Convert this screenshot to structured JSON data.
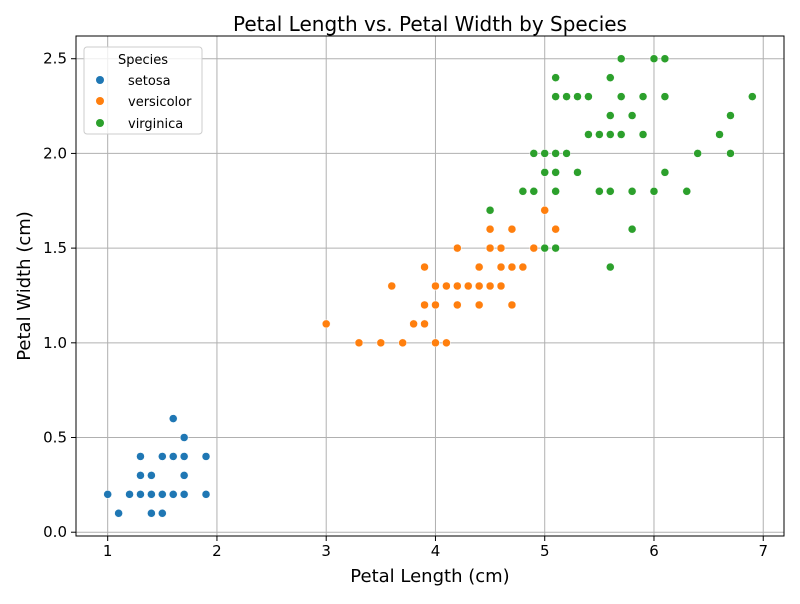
{
  "chart_data": {
    "type": "scatter",
    "title": "Petal Length vs. Petal Width by Species",
    "xlabel": "Petal Length (cm)",
    "ylabel": "Petal Width (cm)",
    "xlim": [
      0.71,
      7.19
    ],
    "ylim": [
      -0.02,
      2.62
    ],
    "x_ticks": [
      1,
      2,
      3,
      4,
      5,
      6,
      7
    ],
    "x_tick_labels": [
      "1",
      "2",
      "3",
      "4",
      "5",
      "6",
      "7"
    ],
    "y_ticks": [
      0.0,
      0.5,
      1.0,
      1.5,
      2.0,
      2.5
    ],
    "y_tick_labels": [
      "0.0",
      "0.5",
      "1.0",
      "1.5",
      "2.0",
      "2.5"
    ],
    "grid": true,
    "legend": {
      "title": "Species",
      "position": "upper-left"
    },
    "series": [
      {
        "name": "setosa",
        "color": "#1f77b4",
        "points": [
          [
            1.4,
            0.2
          ],
          [
            1.3,
            0.2
          ],
          [
            1.5,
            0.2
          ],
          [
            1.7,
            0.4
          ],
          [
            1.4,
            0.3
          ],
          [
            1.5,
            0.1
          ],
          [
            1.1,
            0.1
          ],
          [
            1.2,
            0.2
          ],
          [
            1.3,
            0.4
          ],
          [
            1.3,
            0.3
          ],
          [
            1.7,
            0.3
          ],
          [
            1.0,
            0.2
          ],
          [
            1.7,
            0.5
          ],
          [
            1.9,
            0.2
          ],
          [
            1.6,
            0.2
          ],
          [
            1.6,
            0.4
          ],
          [
            1.4,
            0.1
          ],
          [
            1.5,
            0.4
          ],
          [
            1.6,
            0.6
          ],
          [
            1.9,
            0.4
          ],
          [
            1.4,
            0.2
          ],
          [
            1.7,
            0.2
          ]
        ]
      },
      {
        "name": "versicolor",
        "color": "#ff7f0e",
        "points": [
          [
            4.7,
            1.4
          ],
          [
            4.5,
            1.5
          ],
          [
            4.9,
            1.5
          ],
          [
            4.0,
            1.3
          ],
          [
            4.6,
            1.5
          ],
          [
            4.5,
            1.3
          ],
          [
            4.7,
            1.6
          ],
          [
            3.3,
            1.0
          ],
          [
            4.6,
            1.3
          ],
          [
            3.9,
            1.4
          ],
          [
            3.5,
            1.0
          ],
          [
            4.2,
            1.5
          ],
          [
            4.0,
            1.0
          ],
          [
            4.7,
            1.4
          ],
          [
            3.6,
            1.3
          ],
          [
            4.4,
            1.4
          ],
          [
            4.1,
            1.0
          ],
          [
            4.5,
            1.5
          ],
          [
            3.9,
            1.1
          ],
          [
            4.8,
            1.8
          ],
          [
            4.0,
            1.3
          ],
          [
            4.9,
            1.5
          ],
          [
            4.7,
            1.2
          ],
          [
            4.3,
            1.3
          ],
          [
            4.4,
            1.4
          ],
          [
            4.8,
            1.4
          ],
          [
            5.0,
            1.7
          ],
          [
            4.5,
            1.5
          ],
          [
            3.8,
            1.1
          ],
          [
            3.7,
            1.0
          ],
          [
            3.9,
            1.2
          ],
          [
            5.1,
            1.6
          ],
          [
            4.5,
            1.6
          ],
          [
            4.4,
            1.3
          ],
          [
            4.1,
            1.3
          ],
          [
            4.0,
            1.3
          ],
          [
            4.4,
            1.2
          ],
          [
            4.6,
            1.4
          ],
          [
            3.0,
            1.1
          ],
          [
            4.2,
            1.3
          ],
          [
            4.2,
            1.2
          ],
          [
            4.3,
            1.3
          ],
          [
            5.1,
            1.5
          ],
          [
            4.5,
            1.3
          ],
          [
            4.0,
            1.2
          ],
          [
            4.2,
            1.2
          ],
          [
            4.1,
            1.3
          ],
          [
            3.9,
            1.2
          ]
        ]
      },
      {
        "name": "virginica",
        "color": "#2ca02c",
        "points": [
          [
            6.0,
            2.5
          ],
          [
            5.1,
            1.9
          ],
          [
            5.9,
            2.1
          ],
          [
            5.6,
            1.8
          ],
          [
            5.8,
            2.2
          ],
          [
            6.6,
            2.1
          ],
          [
            4.5,
            1.7
          ],
          [
            6.3,
            1.8
          ],
          [
            5.8,
            1.8
          ],
          [
            6.1,
            2.5
          ],
          [
            5.1,
            2.0
          ],
          [
            5.3,
            1.9
          ],
          [
            5.5,
            2.1
          ],
          [
            5.0,
            2.0
          ],
          [
            5.1,
            2.4
          ],
          [
            5.3,
            2.3
          ],
          [
            5.5,
            1.8
          ],
          [
            6.7,
            2.2
          ],
          [
            6.9,
            2.3
          ],
          [
            5.0,
            1.5
          ],
          [
            5.7,
            2.3
          ],
          [
            4.9,
            2.0
          ],
          [
            6.7,
            2.0
          ],
          [
            4.9,
            1.8
          ],
          [
            5.7,
            2.1
          ],
          [
            6.0,
            1.8
          ],
          [
            4.8,
            1.8
          ],
          [
            5.8,
            1.6
          ],
          [
            6.1,
            1.9
          ],
          [
            6.4,
            2.0
          ],
          [
            5.6,
            2.2
          ],
          [
            5.1,
            1.5
          ],
          [
            5.6,
            1.4
          ],
          [
            6.1,
            2.3
          ],
          [
            5.6,
            2.4
          ],
          [
            5.5,
            1.8
          ],
          [
            5.4,
            2.1
          ],
          [
            5.2,
            2.3
          ],
          [
            5.9,
            2.3
          ],
          [
            5.7,
            2.5
          ],
          [
            5.2,
            2.0
          ],
          [
            5.0,
            1.9
          ],
          [
            5.4,
            2.3
          ],
          [
            5.1,
            1.8
          ],
          [
            5.6,
            2.1
          ],
          [
            5.1,
            2.3
          ],
          [
            5.0,
            2.0
          ],
          [
            5.2,
            2.3
          ]
        ]
      }
    ]
  }
}
